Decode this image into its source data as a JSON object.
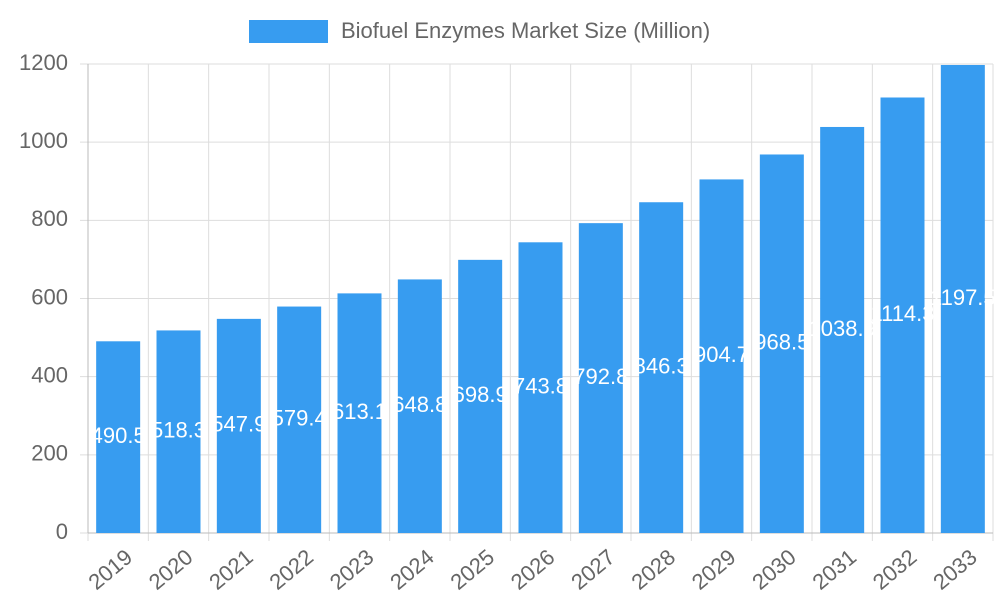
{
  "chart_data": {
    "type": "bar",
    "legend": "Biofuel Enzymes Market Size (Million)",
    "categories": [
      "2019",
      "2020",
      "2021",
      "2022",
      "2023",
      "2024",
      "2025",
      "2026",
      "2027",
      "2028",
      "2029",
      "2030",
      "2031",
      "2032",
      "2033"
    ],
    "values": [
      490.5,
      518.3,
      547.9,
      579.4,
      613.1,
      648.8,
      698.9,
      743.8,
      792.8,
      846.3,
      904.7,
      968.5,
      1038.9,
      1114.3,
      1197.5
    ],
    "color": "#379cf0",
    "ylim": [
      0,
      1200
    ],
    "yticks": [
      0,
      200,
      400,
      600,
      800,
      1000,
      1200
    ],
    "grid": true
  }
}
